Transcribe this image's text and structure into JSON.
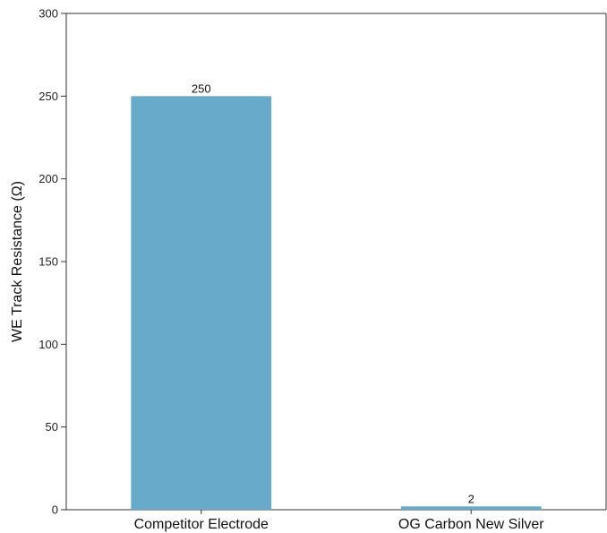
{
  "chart_data": {
    "type": "bar",
    "title": "",
    "xlabel": "",
    "ylabel": "WE Track Resistance (Ω)",
    "categories": [
      "Competitor Electrode",
      "OG Carbon New Silver"
    ],
    "values": [
      250,
      2
    ],
    "data_labels": [
      "250",
      "2"
    ],
    "ylim": [
      0,
      300
    ],
    "yticks": [
      0,
      50,
      100,
      150,
      200,
      250,
      300
    ],
    "ytick_labels": [
      "0",
      "50",
      "100",
      "150",
      "200",
      "250",
      "300"
    ],
    "bar_color": "#67aac9",
    "grid": false,
    "legend": "none"
  }
}
